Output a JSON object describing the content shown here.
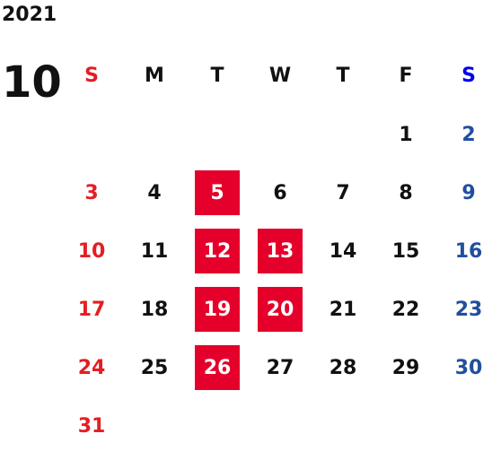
{
  "calendar": {
    "year": "2021",
    "month": "10",
    "weekdays": [
      "S",
      "M",
      "T",
      "W",
      "T",
      "F",
      "S"
    ],
    "rows": [
      [
        "",
        "",
        "",
        "",
        "",
        "1",
        "2"
      ],
      [
        "3",
        "4",
        "5",
        "6",
        "7",
        "8",
        "9"
      ],
      [
        "10",
        "11",
        "12",
        "13",
        "14",
        "15",
        "16"
      ],
      [
        "17",
        "18",
        "19",
        "20",
        "21",
        "22",
        "23"
      ],
      [
        "24",
        "25",
        "26",
        "27",
        "28",
        "29",
        "30"
      ],
      [
        "31",
        "",
        "",
        "",
        "",
        "",
        ""
      ]
    ],
    "highlighted_days": [
      "5",
      "12",
      "13",
      "19",
      "20",
      "26"
    ],
    "colors": {
      "sunday": "#e31e24",
      "saturday": "#214f9e",
      "saturday_header": "#0000ee",
      "highlight_bg": "#e4002b",
      "highlight_text": "#ffffff",
      "default_text": "#111111"
    }
  }
}
